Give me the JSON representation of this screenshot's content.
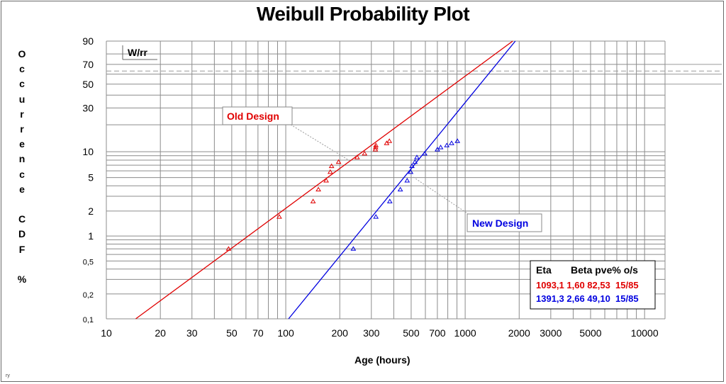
{
  "chart_data": {
    "type": "scatter",
    "title": "Weibull Probability Plot",
    "xlabel": "Age (hours)",
    "ylabel": "Occurrence CDF %",
    "x_scale": "log",
    "y_scale": "weibull",
    "xlim": [
      10,
      13000
    ],
    "ylim": [
      0.1,
      90
    ],
    "x_ticks": [
      10,
      20,
      30,
      50,
      70,
      100,
      200,
      300,
      500,
      700,
      1000,
      2000,
      3000,
      5000,
      10000
    ],
    "x_tick_labels": [
      "10",
      "20",
      "30",
      "50",
      "70",
      "100",
      "200",
      "300",
      "500",
      "700",
      "1000",
      "2000",
      "3000",
      "5000",
      "10000"
    ],
    "y_ticks": [
      0.1,
      0.2,
      0.5,
      1,
      2,
      5,
      10,
      30,
      50,
      70,
      90
    ],
    "y_tick_labels": [
      "0,1",
      "0,2",
      "0,5",
      "1",
      "2",
      "5",
      "10",
      "30",
      "50",
      "70",
      "90"
    ],
    "grid": true,
    "method_label": "W/rr",
    "table_header": [
      "Eta",
      "Beta",
      "pve%",
      "o/s"
    ],
    "series": [
      {
        "name": "Old Design",
        "color": "#e00000",
        "eta": "1093,1",
        "beta": "1,60",
        "pve": "82,53",
        "os": "15/85",
        "line": {
          "eta": 1093.1,
          "beta": 1.6
        },
        "points": [
          {
            "x": 48,
            "y": 0.7
          },
          {
            "x": 92,
            "y": 1.7
          },
          {
            "x": 142,
            "y": 2.6
          },
          {
            "x": 152,
            "y": 3.6
          },
          {
            "x": 168,
            "y": 4.6
          },
          {
            "x": 177,
            "y": 5.8
          },
          {
            "x": 180,
            "y": 6.8
          },
          {
            "x": 197,
            "y": 7.6
          },
          {
            "x": 250,
            "y": 8.6
          },
          {
            "x": 275,
            "y": 9.5
          },
          {
            "x": 316,
            "y": 10.6
          },
          {
            "x": 317,
            "y": 11.2
          },
          {
            "x": 318,
            "y": 11.8
          },
          {
            "x": 365,
            "y": 12.5
          },
          {
            "x": 378,
            "y": 13.2
          }
        ]
      },
      {
        "name": "New Design",
        "color": "#0000e0",
        "eta": "1391,3",
        "beta": "2,66",
        "pve": "49,10",
        "os": "15/85",
        "line": {
          "eta": 1391.3,
          "beta": 2.66
        },
        "points": [
          {
            "x": 238,
            "y": 0.7
          },
          {
            "x": 318,
            "y": 1.7
          },
          {
            "x": 380,
            "y": 2.6
          },
          {
            "x": 435,
            "y": 3.6
          },
          {
            "x": 475,
            "y": 4.6
          },
          {
            "x": 497,
            "y": 5.8
          },
          {
            "x": 505,
            "y": 6.8
          },
          {
            "x": 525,
            "y": 7.6
          },
          {
            "x": 538,
            "y": 8.6
          },
          {
            "x": 595,
            "y": 9.5
          },
          {
            "x": 700,
            "y": 10.6
          },
          {
            "x": 730,
            "y": 11.2
          },
          {
            "x": 790,
            "y": 11.8
          },
          {
            "x": 840,
            "y": 12.5
          },
          {
            "x": 905,
            "y": 13.2
          }
        ]
      }
    ]
  }
}
